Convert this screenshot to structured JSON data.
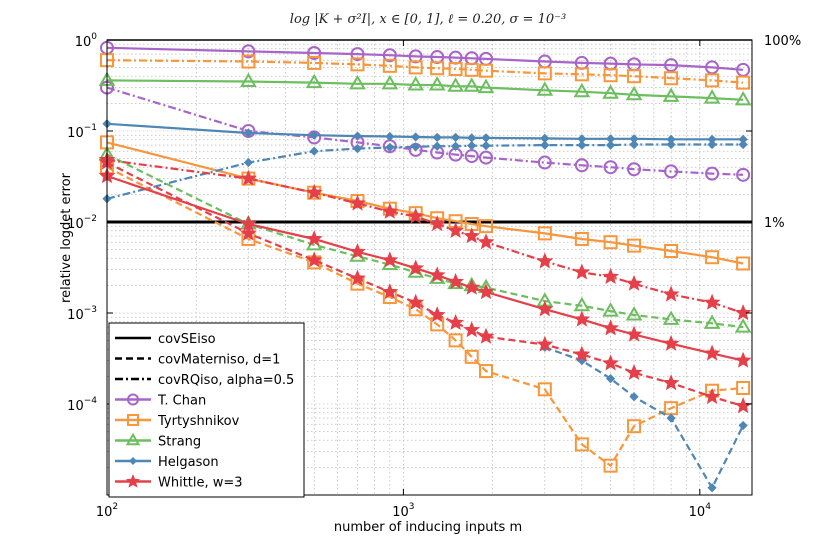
{
  "chart_data": {
    "type": "line",
    "title": "log |K + σ²I|, x ∈ [0, 1], ℓ = 0.20, σ = 10⁻³",
    "xlabel": "number of inducing inputs m",
    "ylabel": "relative logdet error",
    "xscale": "log",
    "yscale": "log",
    "xlim": [
      100,
      15000
    ],
    "ylim": [
      1e-05,
      1
    ],
    "x_ticks": [
      {
        "value": 100,
        "base": "10",
        "exp": "2"
      },
      {
        "value": 1000,
        "base": "10",
        "exp": "3"
      },
      {
        "value": 10000,
        "base": "10",
        "exp": "4"
      }
    ],
    "y_ticks": [
      {
        "value": 1,
        "base": "10",
        "exp": "0"
      },
      {
        "value": 0.1,
        "base": "10",
        "exp": "−1"
      },
      {
        "value": 0.01,
        "base": "10",
        "exp": "−2"
      },
      {
        "value": 0.001,
        "base": "10",
        "exp": "−3"
      },
      {
        "value": 0.0001,
        "base": "10",
        "exp": "−4"
      }
    ],
    "grid": true,
    "reference_lines": [
      {
        "y": 1,
        "label": "100%"
      },
      {
        "y": 0.01,
        "label": "1%"
      }
    ],
    "legend": {
      "placement": "bottom-left",
      "styles": [
        {
          "label": "covSEiso",
          "dash": "solid"
        },
        {
          "label": "covMaterniso, d=1",
          "dash": "dashed"
        },
        {
          "label": "covRQiso, alpha=0.5",
          "dash": "dashdot"
        }
      ],
      "methods": [
        {
          "label": "T. Chan",
          "color": "#A865C9",
          "marker": "circle"
        },
        {
          "label": "Tyrtyshnikov",
          "color": "#F7963A",
          "marker": "square"
        },
        {
          "label": "Strang",
          "color": "#6CBE5F",
          "marker": "triangle"
        },
        {
          "label": "Helgason",
          "color": "#4E86B5",
          "marker": "diamond"
        },
        {
          "label": "Whittle, w=3",
          "color": "#E5404A",
          "marker": "star"
        }
      ]
    },
    "series": [
      {
        "name": "T. Chan / covSEiso",
        "color": "#A865C9",
        "marker": "circle",
        "dash": "solid",
        "x": [
          100,
          300,
          500,
          700,
          900,
          1100,
          1300,
          1500,
          1700,
          1900,
          3000,
          4000,
          5000,
          6000,
          8000,
          11000,
          14000
        ],
        "y": [
          0.82,
          0.75,
          0.72,
          0.7,
          0.68,
          0.66,
          0.65,
          0.64,
          0.63,
          0.62,
          0.58,
          0.56,
          0.55,
          0.54,
          0.53,
          0.5,
          0.47
        ]
      },
      {
        "name": "T. Chan / covRQiso",
        "color": "#A865C9",
        "marker": "circle",
        "dash": "dashdot",
        "x": [
          100,
          300,
          500,
          700,
          900,
          1100,
          1300,
          1500,
          1700,
          1900,
          3000,
          4000,
          5000,
          6000,
          8000,
          11000,
          14000
        ],
        "y": [
          0.3,
          0.1,
          0.085,
          0.075,
          0.068,
          0.062,
          0.058,
          0.055,
          0.053,
          0.051,
          0.045,
          0.042,
          0.04,
          0.038,
          0.036,
          0.034,
          0.033
        ]
      },
      {
        "name": "Tyrtyshnikov / covSEiso",
        "color": "#F7963A",
        "marker": "square",
        "dash": "solid",
        "x": [
          100,
          300,
          500,
          700,
          900,
          1100,
          1300,
          1500,
          1700,
          1900,
          3000,
          4000,
          5000,
          6000,
          8000,
          11000,
          14000
        ],
        "y": [
          0.075,
          0.03,
          0.021,
          0.017,
          0.014,
          0.0125,
          0.011,
          0.0102,
          0.0095,
          0.009,
          0.0075,
          0.0065,
          0.006,
          0.0055,
          0.0048,
          0.0041,
          0.0035
        ]
      },
      {
        "name": "Tyrtyshnikov / covMaterniso",
        "color": "#F7963A",
        "marker": "square",
        "dash": "dashed",
        "x": [
          100,
          300,
          500,
          700,
          900,
          1100,
          1300,
          1500,
          1700,
          1900,
          3000,
          4000,
          5000,
          6000,
          8000,
          11000,
          14000
        ],
        "y": [
          0.04,
          0.0065,
          0.0036,
          0.0021,
          0.0015,
          0.0011,
          0.00075,
          0.0005,
          0.00033,
          0.00023,
          0.000145,
          3.6e-05,
          2.1e-05,
          5.7e-05,
          9e-05,
          0.00014,
          0.00015
        ]
      },
      {
        "name": "Tyrtyshnikov / covRQiso",
        "color": "#F7963A",
        "marker": "square",
        "dash": "dashdot",
        "x": [
          100,
          300,
          500,
          700,
          900,
          1100,
          1300,
          1500,
          1700,
          1900,
          3000,
          4000,
          5000,
          6000,
          8000,
          11000,
          14000
        ],
        "y": [
          0.6,
          0.58,
          0.56,
          0.54,
          0.52,
          0.5,
          0.49,
          0.48,
          0.47,
          0.46,
          0.43,
          0.42,
          0.41,
          0.4,
          0.38,
          0.36,
          0.34
        ]
      },
      {
        "name": "Strang / covSEiso",
        "color": "#6CBE5F",
        "marker": "triangle",
        "dash": "solid",
        "x": [
          100,
          300,
          500,
          700,
          900,
          1100,
          1300,
          1500,
          1700,
          1900,
          3000,
          4000,
          5000,
          6000,
          8000,
          11000,
          14000
        ],
        "y": [
          0.36,
          0.35,
          0.34,
          0.33,
          0.33,
          0.32,
          0.32,
          0.31,
          0.31,
          0.3,
          0.28,
          0.27,
          0.26,
          0.25,
          0.24,
          0.23,
          0.22
        ]
      },
      {
        "name": "Strang / covMaterniso",
        "color": "#6CBE5F",
        "marker": "triangle",
        "dash": "dashed",
        "x": [
          100,
          300,
          500,
          700,
          900,
          1100,
          1300,
          1500,
          1700,
          1900,
          3000,
          4000,
          5000,
          6000,
          8000,
          11000,
          14000
        ],
        "y": [
          0.055,
          0.0095,
          0.0056,
          0.0042,
          0.0034,
          0.0028,
          0.0024,
          0.0021,
          0.002,
          0.0019,
          0.00135,
          0.0012,
          0.00105,
          0.00095,
          0.00085,
          0.00077,
          0.0007
        ]
      },
      {
        "name": "Helgason / covSEiso",
        "color": "#4E86B5",
        "marker": "diamond",
        "dash": "solid",
        "x": [
          100,
          300,
          500,
          700,
          900,
          1100,
          1300,
          1500,
          1700,
          1900,
          3000,
          4000,
          5000,
          6000,
          8000,
          11000,
          14000
        ],
        "y": [
          0.12,
          0.095,
          0.09,
          0.088,
          0.087,
          0.086,
          0.085,
          0.085,
          0.084,
          0.084,
          0.083,
          0.082,
          0.082,
          0.082,
          0.081,
          0.081,
          0.081
        ]
      },
      {
        "name": "Helgason / covRQiso",
        "color": "#4E86B5",
        "marker": "diamond",
        "dash": "dashdot",
        "x": [
          100,
          300,
          500,
          700,
          900,
          1100,
          1300,
          1500,
          1700,
          1900,
          3000,
          4000,
          5000,
          6000,
          8000,
          11000,
          14000
        ],
        "y": [
          0.018,
          0.045,
          0.06,
          0.064,
          0.066,
          0.067,
          0.068,
          0.068,
          0.069,
          0.069,
          0.07,
          0.07,
          0.07,
          0.071,
          0.071,
          0.071,
          0.071
        ]
      },
      {
        "name": "Helgason / covMaterniso",
        "color": "#4E86B5",
        "marker": "diamond",
        "dash": "dashed",
        "x": [
          3000,
          4000,
          5000,
          6000,
          8000,
          11000,
          14000
        ],
        "y": [
          0.00042,
          0.0003,
          0.00019,
          0.00012,
          7e-05,
          1.2e-05,
          5.8e-05
        ]
      },
      {
        "name": "Whittle, w=3 / covSEiso",
        "color": "#E5404A",
        "marker": "star",
        "dash": "solid",
        "x": [
          100,
          300,
          500,
          700,
          900,
          1100,
          1300,
          1500,
          1700,
          1900,
          3000,
          4000,
          5000,
          6000,
          8000,
          11000,
          14000
        ],
        "y": [
          0.032,
          0.0095,
          0.0065,
          0.0047,
          0.0038,
          0.0031,
          0.0026,
          0.0022,
          0.0019,
          0.0017,
          0.0011,
          0.00085,
          0.00068,
          0.00058,
          0.00046,
          0.00036,
          0.0003
        ]
      },
      {
        "name": "Whittle, w=3 / covMaterniso",
        "color": "#E5404A",
        "marker": "star",
        "dash": "dashed",
        "x": [
          100,
          300,
          500,
          700,
          900,
          1100,
          1300,
          1500,
          1700,
          1900,
          3000,
          4000,
          5000,
          6000,
          8000,
          11000,
          14000
        ],
        "y": [
          0.045,
          0.0075,
          0.0038,
          0.0024,
          0.0017,
          0.0013,
          0.00095,
          0.00078,
          0.00065,
          0.00055,
          0.00045,
          0.00035,
          0.00028,
          0.00022,
          0.00017,
          0.00012,
          9.5e-05
        ]
      },
      {
        "name": "Whittle, w=3 / covRQiso",
        "color": "#E5404A",
        "marker": "star",
        "dash": "dashdot",
        "x": [
          100,
          300,
          500,
          700,
          900,
          1100,
          1300,
          1500,
          1700,
          1900,
          3000,
          4000,
          5000,
          6000,
          8000,
          11000,
          14000
        ],
        "y": [
          0.048,
          0.03,
          0.021,
          0.016,
          0.013,
          0.0115,
          0.0095,
          0.008,
          0.007,
          0.006,
          0.0037,
          0.0028,
          0.0025,
          0.0021,
          0.0016,
          0.0013,
          0.001
        ]
      }
    ]
  }
}
